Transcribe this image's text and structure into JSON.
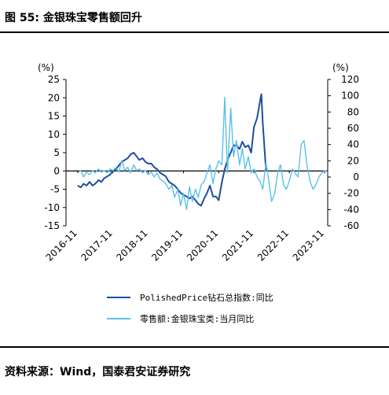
{
  "page": {
    "title": "图 55: 金银珠宝零售额回升",
    "source": "资料来源：Wind，国泰君安证券研究"
  },
  "chart_data": {
    "type": "line",
    "x_tick_labels": [
      "2016-11",
      "2017-11",
      "2018-11",
      "2019-11",
      "2020-11",
      "2021-11",
      "2022-11",
      "2023-11"
    ],
    "y_left": {
      "unit": "(%)",
      "ylim": [
        -15,
        25
      ],
      "ticks": [
        25,
        20,
        15,
        10,
        5,
        0,
        -5,
        -10,
        -15
      ]
    },
    "y_right": {
      "unit": "(%)",
      "ylim": [
        -60,
        120
      ],
      "ticks": [
        120,
        100,
        80,
        60,
        40,
        20,
        0,
        -20,
        -40,
        -60
      ]
    },
    "legend_position": "bottom",
    "grid": false,
    "series": [
      {
        "name": "PolishedPrice钻石总指数:同比",
        "axis": "left",
        "color": "#1f4e9c",
        "x": [
          2016.83,
          2016.92,
          2017.0,
          2017.08,
          2017.17,
          2017.25,
          2017.33,
          2017.42,
          2017.5,
          2017.58,
          2017.67,
          2017.75,
          2017.83,
          2017.92,
          2018.0,
          2018.08,
          2018.17,
          2018.25,
          2018.33,
          2018.42,
          2018.5,
          2018.58,
          2018.67,
          2018.75,
          2018.83,
          2018.92,
          2019.0,
          2019.08,
          2019.17,
          2019.25,
          2019.33,
          2019.42,
          2019.5,
          2019.58,
          2019.67,
          2019.75,
          2019.83,
          2019.92,
          2020.0,
          2020.08,
          2020.17,
          2020.25,
          2020.33,
          2020.42,
          2020.5,
          2020.58,
          2020.67,
          2020.75,
          2020.83,
          2020.92,
          2021.0,
          2021.08,
          2021.17,
          2021.25,
          2021.33,
          2021.42,
          2021.5,
          2021.58,
          2021.67,
          2021.75,
          2021.83,
          2021.92,
          2022.0,
          2022.04,
          2022.08,
          2022.17
        ],
        "values": [
          -4,
          -4.5,
          -3.5,
          -4,
          -3,
          -4,
          -3.5,
          -2.5,
          -3,
          -2,
          -1.5,
          -1,
          0,
          0.5,
          1.5,
          2.5,
          3,
          3.5,
          4.5,
          5,
          4,
          3,
          3.5,
          2.5,
          2,
          2,
          1,
          0.5,
          -0.5,
          -1,
          -1.5,
          -3,
          -3.5,
          -4,
          -5,
          -6,
          -6.5,
          -7,
          -7.5,
          -7,
          -8,
          -9,
          -9.5,
          -7.5,
          -6,
          -4,
          -7,
          -7,
          -8,
          -3,
          0.5,
          3,
          5,
          7,
          7,
          6,
          8,
          6.5,
          7,
          5,
          12,
          14.5,
          19,
          21,
          13,
          0
        ]
      },
      {
        "name": "零售额:金银珠宝类:当月同比",
        "axis": "right",
        "color": "#5bc0eb",
        "x": [
          2016.83,
          2016.92,
          2017.0,
          2017.08,
          2017.17,
          2017.25,
          2017.33,
          2017.42,
          2017.5,
          2017.58,
          2017.67,
          2017.75,
          2017.83,
          2017.92,
          2018.0,
          2018.08,
          2018.17,
          2018.25,
          2018.33,
          2018.42,
          2018.5,
          2018.58,
          2018.67,
          2018.75,
          2018.83,
          2018.92,
          2019.0,
          2019.08,
          2019.17,
          2019.25,
          2019.33,
          2019.42,
          2019.5,
          2019.58,
          2019.67,
          2019.75,
          2019.83,
          2019.92,
          2020.0,
          2020.08,
          2020.17,
          2020.25,
          2020.33,
          2020.42,
          2020.5,
          2020.58,
          2020.67,
          2020.75,
          2020.83,
          2020.92,
          2021.0,
          2021.08,
          2021.17,
          2021.25,
          2021.33,
          2021.42,
          2021.5,
          2021.58,
          2021.67,
          2021.75,
          2021.83,
          2021.92,
          2022.0,
          2022.08,
          2022.17,
          2022.25,
          2022.33,
          2022.42,
          2022.5,
          2022.58,
          2022.67,
          2022.75,
          2022.83,
          2022.92,
          2023.0,
          2023.08,
          2023.17,
          2023.25,
          2023.33,
          2023.42,
          2023.5,
          2023.58,
          2023.67,
          2023.75,
          2023.83,
          2023.92
        ],
        "values": [
          5,
          8,
          0,
          6,
          3,
          8,
          5,
          10,
          6,
          8,
          5,
          10,
          8,
          12,
          6,
          20,
          8,
          12,
          5,
          15,
          8,
          10,
          5,
          8,
          3,
          6,
          0,
          5,
          -3,
          -5,
          -8,
          -15,
          -10,
          -25,
          -15,
          -35,
          -20,
          -40,
          -12,
          -30,
          -15,
          -25,
          -10,
          -5,
          5,
          15,
          -8,
          10,
          20,
          15,
          98,
          5,
          85,
          25,
          45,
          15,
          35,
          10,
          25,
          5,
          10,
          0,
          -5,
          -15,
          18,
          -5,
          -30,
          -20,
          5,
          15,
          -10,
          -15,
          -5,
          10,
          5,
          0,
          40,
          45,
          15,
          -5,
          -15,
          -10,
          0,
          5,
          8,
          6
        ]
      }
    ]
  }
}
